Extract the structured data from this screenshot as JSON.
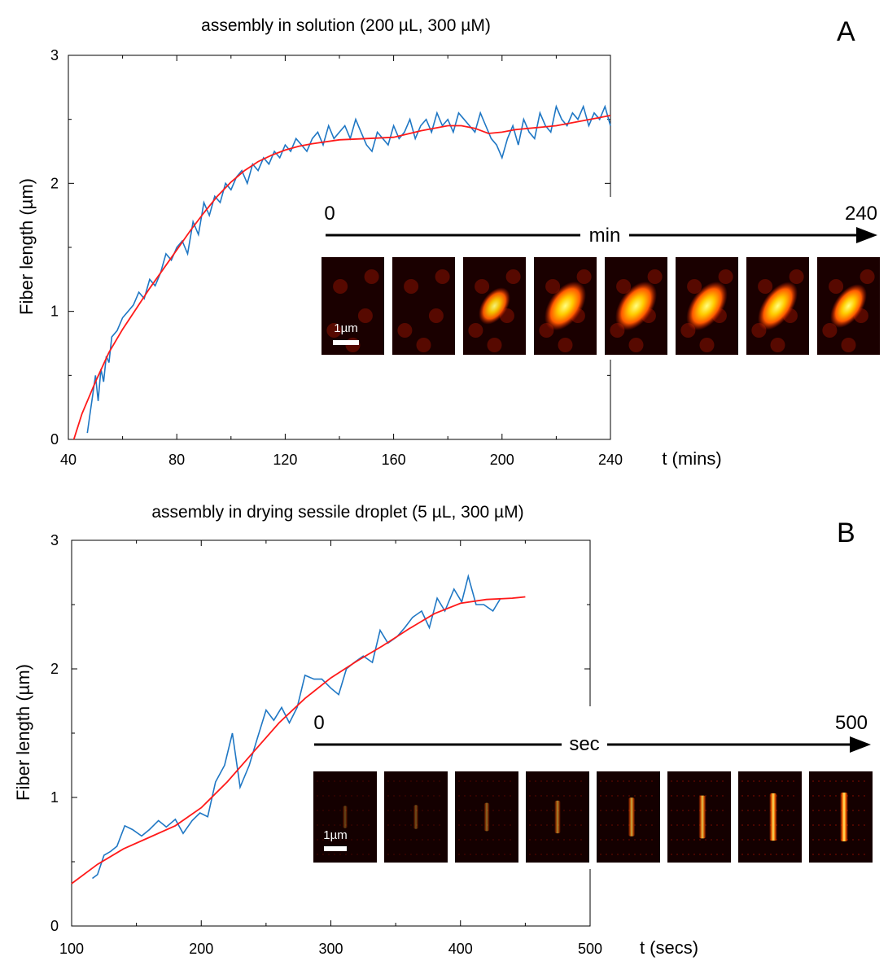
{
  "chart_data": [
    {
      "panel_label": "A",
      "type": "line",
      "title": "assembly in solution (200 µL, 300 µM)",
      "xlabel": "t (mins)",
      "ylabel": "Fiber length (µm)",
      "xlim": [
        40,
        240
      ],
      "ylim": [
        0,
        3
      ],
      "xticks": [
        "40",
        "80",
        "120",
        "160",
        "200",
        "240"
      ],
      "yticks": [
        "0",
        "1",
        "2",
        "3"
      ],
      "grid": false,
      "colors": {
        "data": "#1f77c4",
        "fit": "#ff1a1a"
      },
      "series": [
        {
          "role": "data",
          "x": [
            47,
            48,
            49,
            50,
            51,
            52,
            53,
            54,
            55,
            56,
            58,
            60,
            62,
            64,
            66,
            68,
            70,
            72,
            74,
            76,
            78,
            80,
            82,
            84,
            86,
            88,
            90,
            92,
            94,
            96,
            98,
            100,
            102,
            104,
            106,
            108,
            110,
            112,
            114,
            116,
            118,
            120,
            122,
            124,
            126,
            128,
            130,
            132,
            134,
            136,
            138,
            140,
            142,
            144,
            146,
            148,
            150,
            152,
            154,
            156,
            158,
            160,
            162,
            164,
            166,
            168,
            170,
            172,
            174,
            176,
            178,
            180,
            182,
            184,
            186,
            188,
            190,
            192,
            194,
            196,
            198,
            200,
            202,
            204,
            206,
            208,
            210,
            212,
            214,
            216,
            218,
            220,
            222,
            224,
            226,
            228,
            230,
            232,
            234,
            236,
            238,
            240
          ],
          "y": [
            0.05,
            0.2,
            0.35,
            0.5,
            0.3,
            0.55,
            0.45,
            0.65,
            0.6,
            0.8,
            0.85,
            0.95,
            1.0,
            1.05,
            1.15,
            1.1,
            1.25,
            1.2,
            1.3,
            1.45,
            1.4,
            1.5,
            1.55,
            1.45,
            1.7,
            1.6,
            1.85,
            1.75,
            1.9,
            1.85,
            2.0,
            1.95,
            2.05,
            2.1,
            2.0,
            2.15,
            2.1,
            2.2,
            2.15,
            2.25,
            2.2,
            2.3,
            2.25,
            2.35,
            2.3,
            2.25,
            2.35,
            2.4,
            2.3,
            2.45,
            2.35,
            2.4,
            2.45,
            2.35,
            2.5,
            2.4,
            2.3,
            2.25,
            2.4,
            2.35,
            2.3,
            2.45,
            2.35,
            2.4,
            2.5,
            2.35,
            2.45,
            2.5,
            2.4,
            2.55,
            2.45,
            2.5,
            2.4,
            2.55,
            2.5,
            2.45,
            2.4,
            2.55,
            2.45,
            2.35,
            2.3,
            2.2,
            2.35,
            2.45,
            2.3,
            2.5,
            2.4,
            2.35,
            2.55,
            2.45,
            2.4,
            2.6,
            2.5,
            2.45,
            2.55,
            2.5,
            2.6,
            2.45,
            2.55,
            2.5,
            2.6,
            2.45
          ]
        },
        {
          "role": "fit",
          "x": [
            42,
            45,
            50,
            55,
            60,
            65,
            70,
            75,
            80,
            85,
            90,
            95,
            100,
            105,
            110,
            115,
            120,
            125,
            130,
            140,
            150,
            160,
            170,
            180,
            185,
            190,
            195,
            200,
            205,
            210,
            215,
            220,
            225,
            230,
            235,
            240
          ],
          "y": [
            0.0,
            0.2,
            0.45,
            0.68,
            0.86,
            1.02,
            1.18,
            1.33,
            1.48,
            1.63,
            1.77,
            1.9,
            2.01,
            2.1,
            2.17,
            2.22,
            2.26,
            2.29,
            2.31,
            2.34,
            2.35,
            2.36,
            2.41,
            2.45,
            2.45,
            2.43,
            2.39,
            2.4,
            2.42,
            2.43,
            2.44,
            2.45,
            2.47,
            2.49,
            2.51,
            2.53
          ]
        }
      ],
      "inset": {
        "start_label": "0",
        "end_label": "240",
        "unit_label": "min",
        "scalebar_label": "1µm",
        "frame_count": 8,
        "frame_intensity": [
          0.05,
          0.1,
          0.55,
          1.0,
          1.0,
          0.95,
          0.8,
          0.7
        ]
      }
    },
    {
      "panel_label": "B",
      "type": "line",
      "title": "assembly in drying sessile droplet (5 µL, 300 µM)",
      "xlabel": "t (secs)",
      "ylabel": "Fiber length (µm)",
      "xlim": [
        100,
        500
      ],
      "ylim": [
        0,
        3
      ],
      "xticks": [
        "100",
        "200",
        "300",
        "400",
        "500"
      ],
      "yticks": [
        "0",
        "1",
        "2",
        "3"
      ],
      "grid": false,
      "colors": {
        "data": "#1f77c4",
        "fit": "#ff1a1a"
      },
      "series": [
        {
          "role": "data",
          "x": [
            116,
            120,
            125,
            130,
            135,
            141,
            147,
            154,
            160,
            167,
            173,
            180,
            186,
            193,
            199,
            205,
            211,
            218,
            224,
            230,
            237,
            243,
            250,
            256,
            262,
            268,
            274,
            280,
            287,
            293,
            300,
            306,
            312,
            318,
            325,
            332,
            338,
            344,
            351,
            357,
            363,
            370,
            376,
            382,
            388,
            395,
            401,
            406,
            412,
            418,
            425,
            431
          ],
          "y": [
            0.37,
            0.4,
            0.55,
            0.58,
            0.62,
            0.78,
            0.75,
            0.7,
            0.75,
            0.82,
            0.77,
            0.83,
            0.72,
            0.82,
            0.88,
            0.85,
            1.12,
            1.25,
            1.5,
            1.08,
            1.25,
            1.45,
            1.68,
            1.6,
            1.7,
            1.58,
            1.7,
            1.95,
            1.92,
            1.92,
            1.85,
            1.8,
            2.0,
            2.05,
            2.1,
            2.05,
            2.3,
            2.2,
            2.25,
            2.32,
            2.4,
            2.45,
            2.32,
            2.55,
            2.45,
            2.62,
            2.52,
            2.72,
            2.5,
            2.5,
            2.45,
            2.55
          ]
        },
        {
          "role": "fit",
          "x": [
            100,
            120,
            140,
            160,
            180,
            200,
            220,
            240,
            260,
            280,
            300,
            320,
            340,
            360,
            380,
            400,
            420,
            440,
            450
          ],
          "y": [
            0.33,
            0.48,
            0.6,
            0.69,
            0.78,
            0.92,
            1.12,
            1.35,
            1.58,
            1.77,
            1.93,
            2.06,
            2.18,
            2.31,
            2.43,
            2.51,
            2.54,
            2.55,
            2.56
          ]
        }
      ],
      "inset": {
        "start_label": "0",
        "end_label": "500",
        "unit_label": "sec",
        "scalebar_label": "1µm",
        "frame_count": 8,
        "frame_intensity": [
          0.1,
          0.15,
          0.3,
          0.45,
          0.65,
          0.8,
          0.95,
          1.0
        ]
      }
    }
  ]
}
